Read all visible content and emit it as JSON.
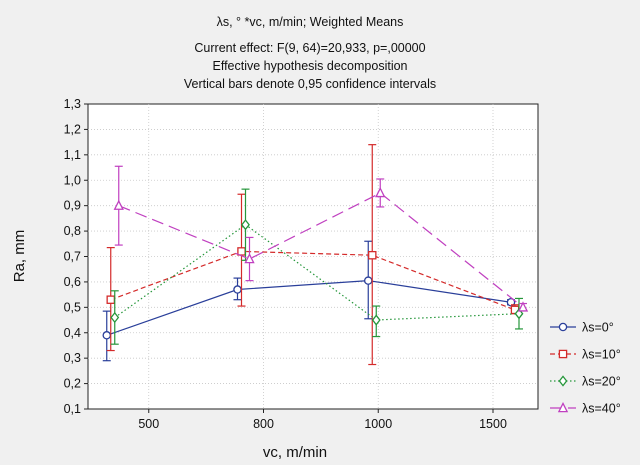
{
  "chart_data": {
    "type": "line",
    "title_lines": [
      "λs, ° *vc, m/min; Weighted Means",
      "Current effect: F(9, 64)=20,933, p=,00000",
      "Effective hypothesis decomposition",
      "Vertical bars denote 0,95 confidence intervals"
    ],
    "xlabel": "vc, m/min",
    "ylabel": "Ra, mm",
    "categories": [
      "500",
      "800",
      "1000",
      "1500"
    ],
    "ylim": [
      0.1,
      1.3
    ],
    "yticks": [
      "0,1",
      "0,2",
      "0,3",
      "0,4",
      "0,5",
      "0,6",
      "0,7",
      "0,8",
      "0,9",
      "1,0",
      "1,1",
      "1,2",
      "1,3"
    ],
    "grid": true,
    "legend_position": "right",
    "series": [
      {
        "name": "λs=0°",
        "color": "#2a3f9a",
        "marker": "circle",
        "dash": "solid",
        "values": [
          0.39,
          0.57,
          0.605,
          0.52
        ],
        "ci_low": [
          0.29,
          0.53,
          0.455,
          0.51
        ],
        "ci_high": [
          0.485,
          0.615,
          0.76,
          0.53
        ]
      },
      {
        "name": "λs=10°",
        "color": "#d42a2a",
        "marker": "square",
        "dash": "dashed",
        "values": [
          0.53,
          0.72,
          0.705,
          0.49
        ],
        "ci_low": [
          0.33,
          0.505,
          0.275,
          0.475
        ],
        "ci_high": [
          0.735,
          0.945,
          1.14,
          0.51
        ]
      },
      {
        "name": "λs=20°",
        "color": "#25963a",
        "marker": "diamond",
        "dash": "dotted",
        "values": [
          0.46,
          0.825,
          0.45,
          0.475
        ],
        "ci_low": [
          0.355,
          0.685,
          0.385,
          0.415
        ],
        "ci_high": [
          0.565,
          0.965,
          0.505,
          0.535
        ]
      },
      {
        "name": "λs=40°",
        "color": "#c040c0",
        "marker": "triangle",
        "dash": "longdash",
        "values": [
          0.9,
          0.69,
          0.95,
          0.5
        ],
        "ci_low": [
          0.745,
          0.605,
          0.895,
          0.49
        ],
        "ci_high": [
          1.055,
          0.775,
          1.005,
          0.515
        ]
      }
    ]
  }
}
